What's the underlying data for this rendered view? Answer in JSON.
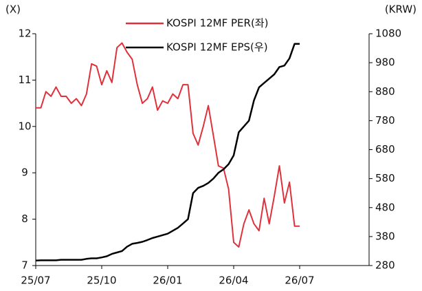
{
  "chart_data": {
    "type": "line",
    "y_unit": "(X)",
    "y2_unit": "(KRW)",
    "categories": [
      "25/07",
      null,
      null,
      null,
      null,
      null,
      null,
      null,
      null,
      null,
      null,
      null,
      null,
      "25/10",
      null,
      null,
      null,
      null,
      null,
      null,
      null,
      null,
      null,
      null,
      null,
      null,
      "26/01",
      null,
      null,
      null,
      null,
      null,
      null,
      null,
      null,
      null,
      null,
      null,
      null,
      "26/04",
      null,
      null,
      null,
      null,
      null,
      null,
      null,
      null,
      null,
      null,
      null,
      null,
      "26/07"
    ],
    "series": [
      {
        "name": "KOSPI 12MF PER(좌)",
        "color": "#e0303a",
        "axis": "y",
        "values": [
          10.4,
          10.4,
          10.75,
          10.65,
          10.85,
          10.65,
          10.65,
          10.5,
          10.6,
          10.45,
          10.7,
          11.35,
          11.3,
          10.9,
          11.2,
          10.95,
          11.7,
          11.8,
          11.6,
          11.45,
          10.9,
          10.5,
          10.6,
          10.85,
          10.35,
          10.55,
          10.5,
          10.7,
          10.6,
          10.9,
          10.9,
          9.85,
          9.6,
          10.0,
          10.45,
          9.8,
          9.15,
          9.1,
          8.65,
          7.5,
          7.4,
          7.9,
          8.2,
          7.9,
          7.75,
          8.45,
          7.9,
          8.5,
          9.15,
          8.35,
          8.8,
          7.85,
          7.85
        ]
      },
      {
        "name": "KOSPI 12MF EPS(우)",
        "color": "#000000",
        "axis": "y2",
        "values": [
          297,
          298,
          298,
          298,
          298,
          300,
          300,
          300,
          300,
          300,
          303,
          305,
          305,
          308,
          312,
          320,
          325,
          330,
          345,
          355,
          358,
          362,
          368,
          375,
          380,
          385,
          390,
          400,
          410,
          425,
          440,
          530,
          548,
          555,
          565,
          580,
          600,
          612,
          630,
          660,
          740,
          760,
          780,
          850,
          895,
          910,
          925,
          940,
          965,
          970,
          995,
          1045,
          1045
        ]
      }
    ],
    "ylim": [
      7,
      12
    ],
    "yticks": [
      7,
      8,
      9,
      10,
      11,
      12
    ],
    "y2lim": [
      280,
      1080
    ],
    "y2ticks": [
      280,
      380,
      480,
      580,
      680,
      780,
      880,
      980,
      1080
    ]
  }
}
